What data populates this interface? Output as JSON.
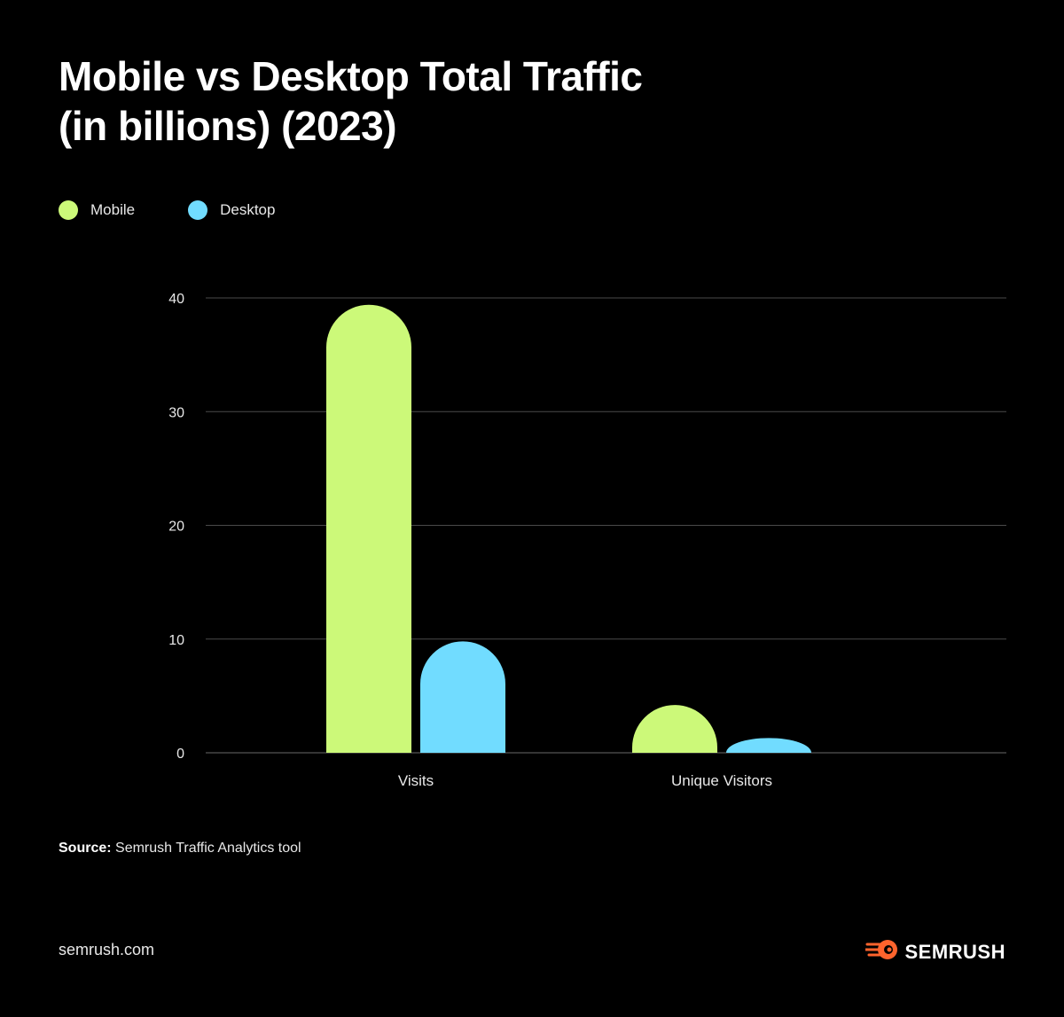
{
  "title_line1": "Mobile vs Desktop Total Traffic",
  "title_line2": "(in billions) (2023)",
  "source_label": "Source:",
  "source_text": "Semrush Traffic Analytics tool",
  "footer_site": "semrush.com",
  "logo_text": "SEMRUSH",
  "logo_icon": "semrush-fireball-icon",
  "colors": {
    "background": "#000000",
    "mobile": "#ccf979",
    "desktop": "#71dcff",
    "grid": "#4a4a4a",
    "logo_accent": "#ff642d"
  },
  "chart_data": {
    "type": "bar",
    "categories": [
      "Visits",
      "Unique Visitors"
    ],
    "series": [
      {
        "name": "Mobile",
        "values": [
          39.4,
          4.2
        ]
      },
      {
        "name": "Desktop",
        "values": [
          9.8,
          1.3
        ]
      }
    ],
    "ylim": [
      0,
      40
    ],
    "yticks": [
      "0",
      "10",
      "20",
      "30",
      "40"
    ],
    "grid": true,
    "legend": "top-left",
    "xlabel": "",
    "ylabel": ""
  }
}
